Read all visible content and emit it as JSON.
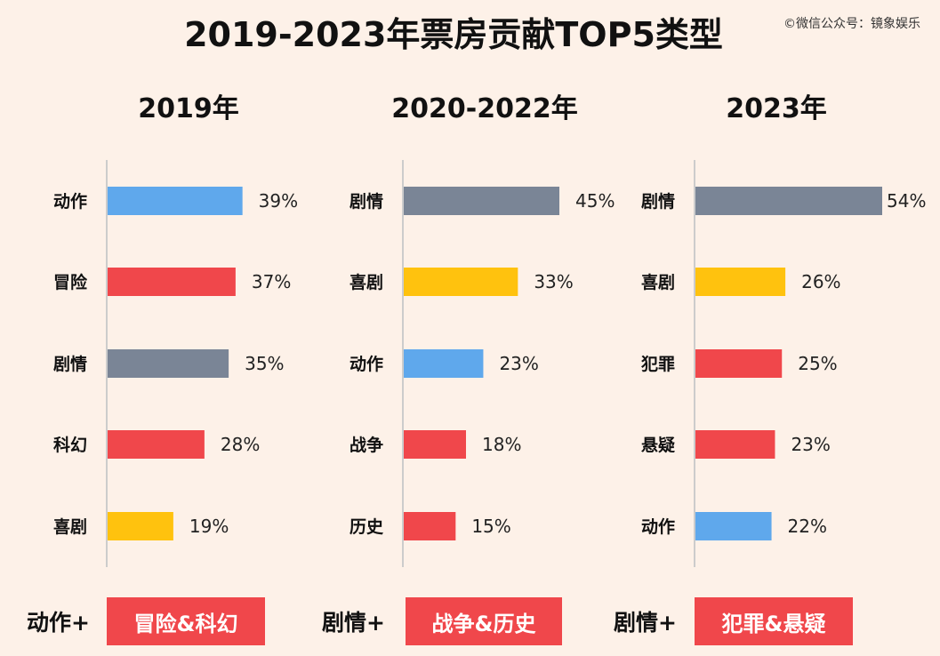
{
  "title": "2019-2023年票房贡献TOP5类型",
  "watermark": "©微信公众号：镜象娱乐",
  "colors": {
    "action": "#5fa8ec",
    "adventure": "#f0474b",
    "drama": "#7a8596",
    "comedy": "#ffc20e",
    "red": "#f0474b",
    "axis": "#cccccc"
  },
  "chart_data": [
    {
      "type": "bar",
      "orientation": "horizontal",
      "title": "2019年",
      "categories": [
        "动作",
        "冒险",
        "剧情",
        "科幻",
        "喜剧"
      ],
      "values": [
        39,
        37,
        35,
        28,
        19
      ],
      "value_labels": [
        "39%",
        "37%",
        "35%",
        "28%",
        "19%"
      ],
      "colors": [
        "#5fa8ec",
        "#f0474b",
        "#7a8596",
        "#f0474b",
        "#ffc20e"
      ],
      "xlim": [
        0,
        54
      ]
    },
    {
      "type": "bar",
      "orientation": "horizontal",
      "title": "2020-2022年",
      "categories": [
        "剧情",
        "喜剧",
        "动作",
        "战争",
        "历史"
      ],
      "values": [
        45,
        33,
        23,
        18,
        15
      ],
      "value_labels": [
        "45%",
        "33%",
        "23%",
        "18%",
        "15%"
      ],
      "colors": [
        "#7a8596",
        "#ffc20e",
        "#5fa8ec",
        "#f0474b",
        "#f0474b"
      ],
      "xlim": [
        0,
        54
      ]
    },
    {
      "type": "bar",
      "orientation": "horizontal",
      "title": "2023年",
      "categories": [
        "剧情",
        "喜剧",
        "犯罪",
        "悬疑",
        "动作"
      ],
      "values": [
        54,
        26,
        25,
        23,
        22
      ],
      "value_labels": [
        "54%",
        "26%",
        "25%",
        "23%",
        "22%"
      ],
      "colors": [
        "#7a8596",
        "#ffc20e",
        "#f0474b",
        "#f0474b",
        "#5fa8ec"
      ],
      "xlim": [
        0,
        54
      ]
    }
  ],
  "footer": [
    {
      "lead": "动作+",
      "tag": "冒险&科幻"
    },
    {
      "lead": "剧情+",
      "tag": "战争&历史"
    },
    {
      "lead": "剧情+",
      "tag": "犯罪&悬疑"
    }
  ]
}
